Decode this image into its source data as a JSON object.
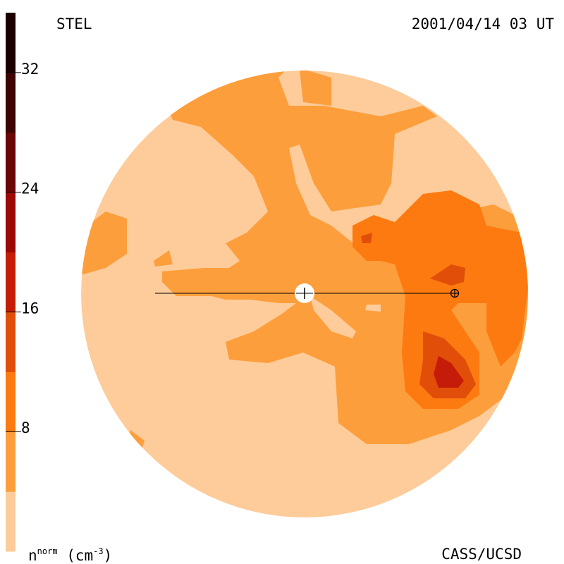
{
  "header": {
    "source": "STEL",
    "timestamp": "2001/04/14 03 UT"
  },
  "footer": {
    "credit": "CASS/UCSD"
  },
  "chart_data": {
    "type": "heatmap",
    "colorbar": {
      "title": "n",
      "title_superscript": "norm",
      "units_prefix": " (cm",
      "units_superscript": "-3",
      "units_suffix": ")",
      "range": [
        0,
        36
      ],
      "ticks": [
        8,
        16,
        24,
        32
      ],
      "tick_labels": [
        "8",
        "16",
        "24",
        "32"
      ],
      "bins": [
        {
          "from": 0,
          "to": 4,
          "color": "#fdcc9a"
        },
        {
          "from": 4,
          "to": 8,
          "color": "#fd9e3c"
        },
        {
          "from": 8,
          "to": 12,
          "color": "#fd7a10"
        },
        {
          "from": 12,
          "to": 16,
          "color": "#e14e0a"
        },
        {
          "from": 16,
          "to": 20,
          "color": "#c41c08"
        },
        {
          "from": 20,
          "to": 24,
          "color": "#9c0806"
        },
        {
          "from": 24,
          "to": 28,
          "color": "#6a0606"
        },
        {
          "from": 28,
          "to": 32,
          "color": "#3e0404"
        },
        {
          "from": 32,
          "to": 36,
          "color": "#1c0000"
        }
      ]
    },
    "markers": {
      "sun": "white-disc",
      "earth": "circle-plus",
      "sun_earth_line": true
    }
  }
}
